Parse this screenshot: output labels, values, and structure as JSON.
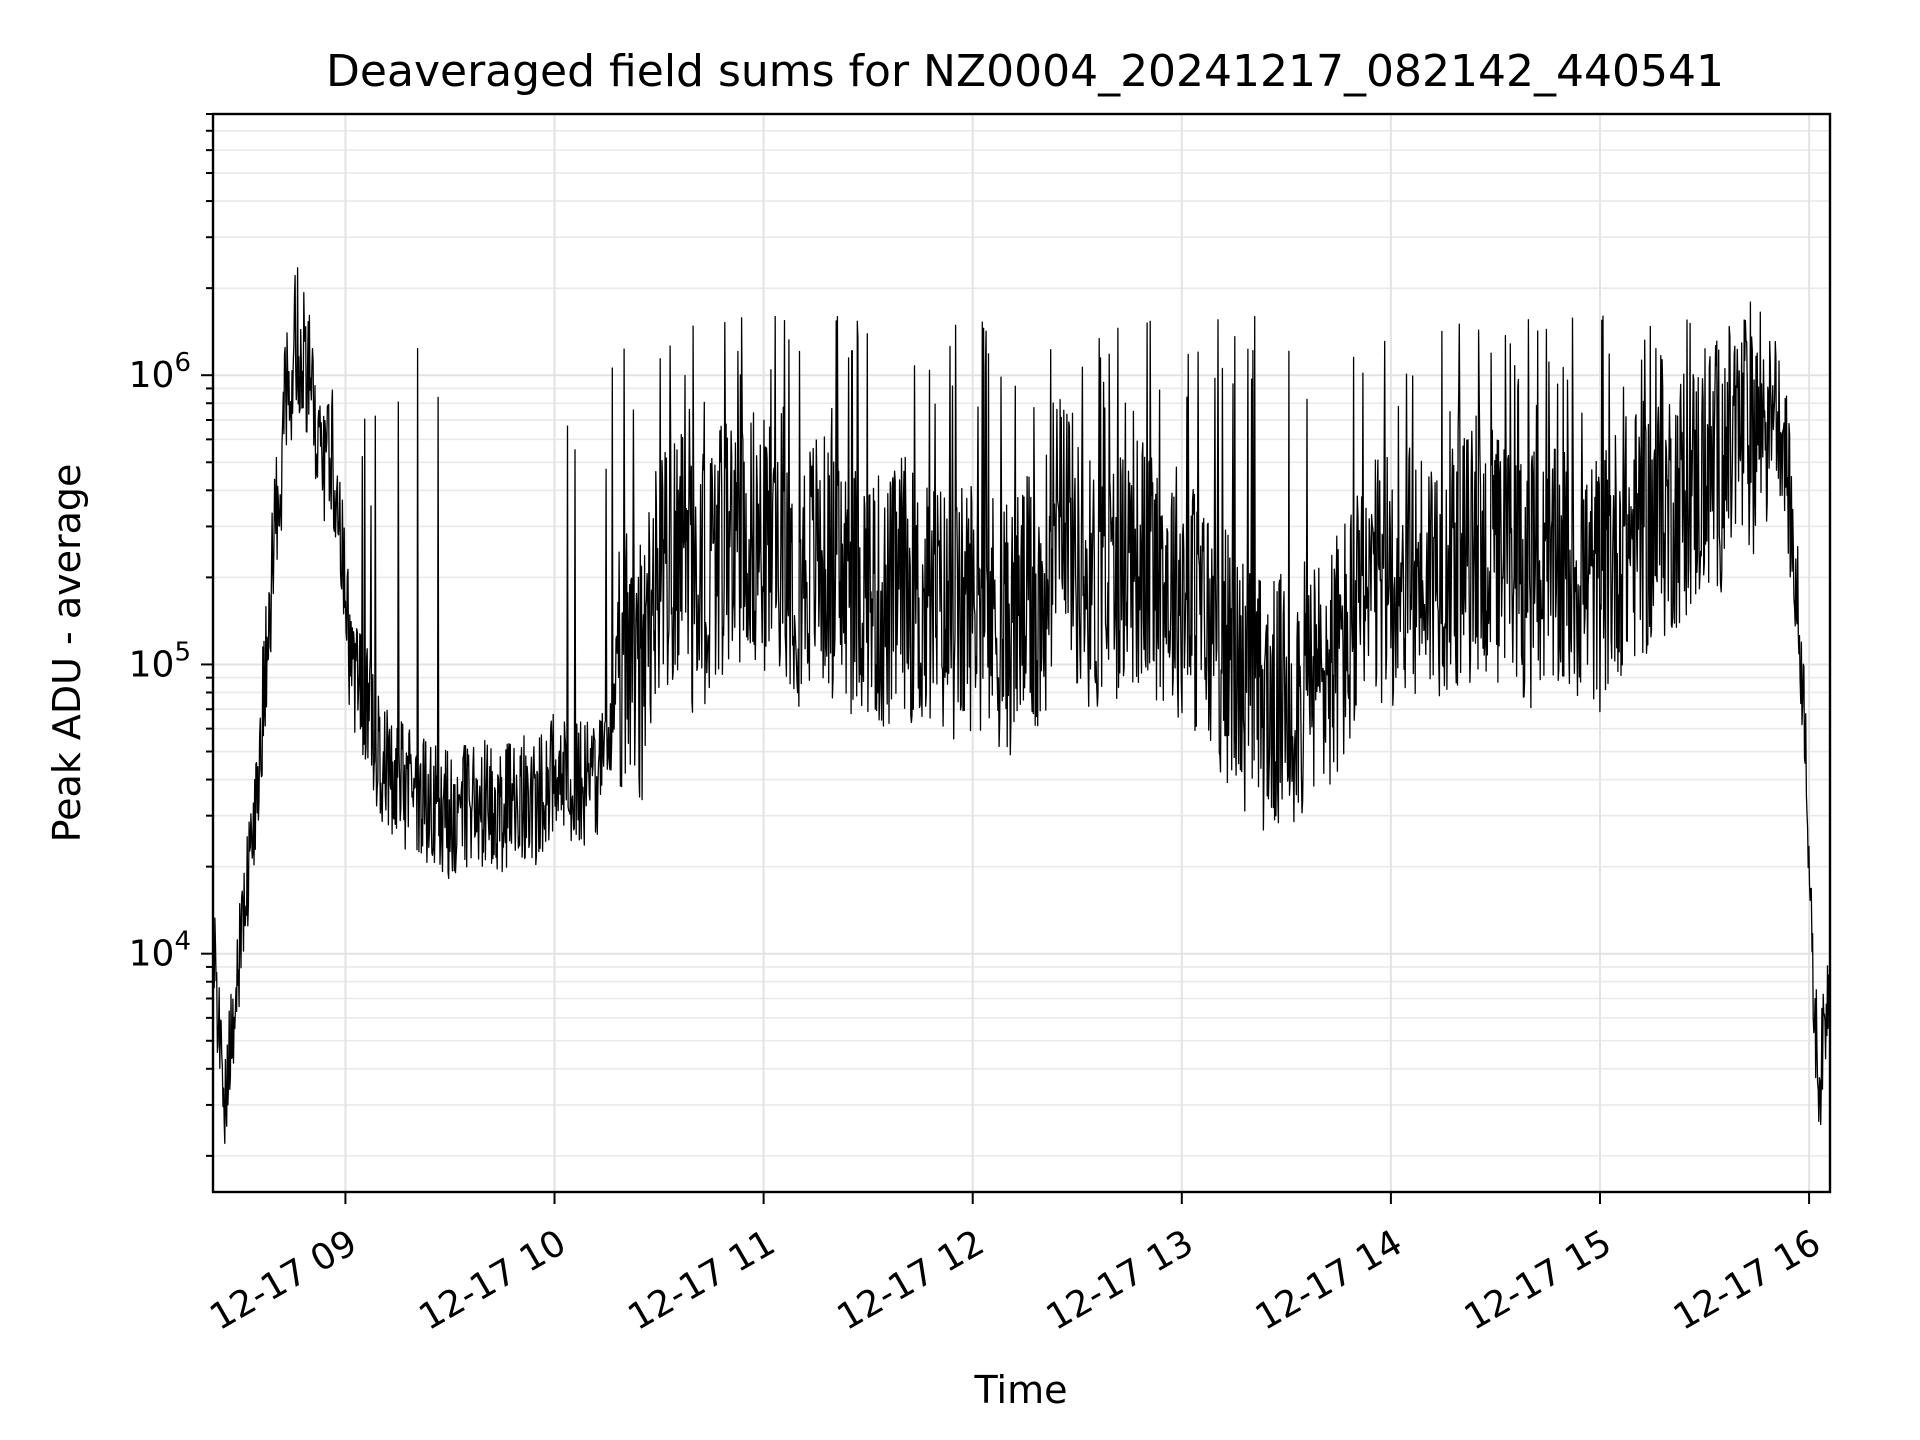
{
  "chart_data": {
    "type": "line",
    "title": "Deaveraged field sums for NZ0004_20241217_082142_440541",
    "xlabel": "Time",
    "ylabel": "Peak ADU - average",
    "yscale": "log",
    "grid": true,
    "legend": "none",
    "xlim": [
      "2024-12-17 08:22",
      "2024-12-17 16:06"
    ],
    "ylim": [
      1500,
      8000000
    ],
    "x_ticks": [
      "12-17 09",
      "12-17 10",
      "12-17 11",
      "12-17 12",
      "12-17 13",
      "12-17 14",
      "12-17 15",
      "12-17 16"
    ],
    "y_ticks": [
      {
        "base": "10",
        "exp": "4",
        "value": 10000
      },
      {
        "base": "10",
        "exp": "5",
        "value": 100000
      },
      {
        "base": "10",
        "exp": "6",
        "value": 1000000
      }
    ],
    "series": [
      {
        "color": "#000000",
        "x": [
          "2024-12-17 08:22",
          "2024-12-17 08:25",
          "2024-12-17 08:28",
          "2024-12-17 08:31",
          "2024-12-17 08:34",
          "2024-12-17 08:37",
          "2024-12-17 08:40",
          "2024-12-17 08:43",
          "2024-12-17 08:46",
          "2024-12-17 08:49",
          "2024-12-17 08:52",
          "2024-12-17 08:55",
          "2024-12-17 08:58",
          "2024-12-17 09:01",
          "2024-12-17 09:04",
          "2024-12-17 09:07",
          "2024-12-17 09:10",
          "2024-12-17 09:15",
          "2024-12-17 09:20",
          "2024-12-17 09:25",
          "2024-12-17 09:30",
          "2024-12-17 09:35",
          "2024-12-17 09:40",
          "2024-12-17 09:45",
          "2024-12-17 09:50",
          "2024-12-17 09:55",
          "2024-12-17 10:00",
          "2024-12-17 10:05",
          "2024-12-17 10:10",
          "2024-12-17 10:15",
          "2024-12-17 10:20",
          "2024-12-17 10:25",
          "2024-12-17 10:30",
          "2024-12-17 10:35",
          "2024-12-17 10:40",
          "2024-12-17 10:45",
          "2024-12-17 10:50",
          "2024-12-17 10:55",
          "2024-12-17 11:00",
          "2024-12-17 11:05",
          "2024-12-17 11:10",
          "2024-12-17 11:15",
          "2024-12-17 11:20",
          "2024-12-17 11:25",
          "2024-12-17 11:30",
          "2024-12-17 11:35",
          "2024-12-17 11:40",
          "2024-12-17 11:45",
          "2024-12-17 11:50",
          "2024-12-17 11:55",
          "2024-12-17 12:00",
          "2024-12-17 12:05",
          "2024-12-17 12:10",
          "2024-12-17 12:15",
          "2024-12-17 12:20",
          "2024-12-17 12:25",
          "2024-12-17 12:30",
          "2024-12-17 12:35",
          "2024-12-17 12:40",
          "2024-12-17 12:45",
          "2024-12-17 12:50",
          "2024-12-17 12:55",
          "2024-12-17 13:00",
          "2024-12-17 13:05",
          "2024-12-17 13:10",
          "2024-12-17 13:15",
          "2024-12-17 13:20",
          "2024-12-17 13:25",
          "2024-12-17 13:30",
          "2024-12-17 13:35",
          "2024-12-17 13:40",
          "2024-12-17 13:45",
          "2024-12-17 13:50",
          "2024-12-17 13:55",
          "2024-12-17 14:00",
          "2024-12-17 14:05",
          "2024-12-17 14:10",
          "2024-12-17 14:15",
          "2024-12-17 14:20",
          "2024-12-17 14:25",
          "2024-12-17 14:30",
          "2024-12-17 14:35",
          "2024-12-17 14:40",
          "2024-12-17 14:45",
          "2024-12-17 14:50",
          "2024-12-17 14:55",
          "2024-12-17 15:00",
          "2024-12-17 15:05",
          "2024-12-17 15:10",
          "2024-12-17 15:15",
          "2024-12-17 15:20",
          "2024-12-17 15:25",
          "2024-12-17 15:30",
          "2024-12-17 15:35",
          "2024-12-17 15:40",
          "2024-12-17 15:45",
          "2024-12-17 15:50",
          "2024-12-17 15:53",
          "2024-12-17 15:56",
          "2024-12-17 15:59",
          "2024-12-17 16:01",
          "2024-12-17 16:03",
          "2024-12-17 16:06"
        ],
        "y": [
          12000,
          3000,
          6500,
          14000,
          30000,
          90000,
          300000,
          800000,
          1400000,
          1100000,
          500000,
          550000,
          450000,
          120000,
          80000,
          70000,
          45000,
          40000,
          35000,
          33000,
          30000,
          32000,
          33000,
          31000,
          35000,
          33000,
          45000,
          40000,
          38000,
          45000,
          120000,
          90000,
          200000,
          250000,
          180000,
          220000,
          260000,
          300000,
          250000,
          280000,
          200000,
          240000,
          210000,
          180000,
          190000,
          150000,
          200000,
          150000,
          160000,
          140000,
          170000,
          150000,
          130000,
          160000,
          150000,
          500000,
          220000,
          180000,
          200000,
          240000,
          220000,
          200000,
          180000,
          150000,
          120000,
          100000,
          80000,
          70000,
          75000,
          80000,
          90000,
          110000,
          140000,
          180000,
          200000,
          200000,
          210000,
          220000,
          230000,
          240000,
          230000,
          220000,
          200000,
          190000,
          210000,
          200000,
          190000,
          250000,
          280000,
          300000,
          350000,
          400000,
          450000,
          500000,
          600000,
          700000,
          800000,
          600000,
          200000,
          60000,
          8000,
          3500,
          9000
        ]
      }
    ]
  }
}
